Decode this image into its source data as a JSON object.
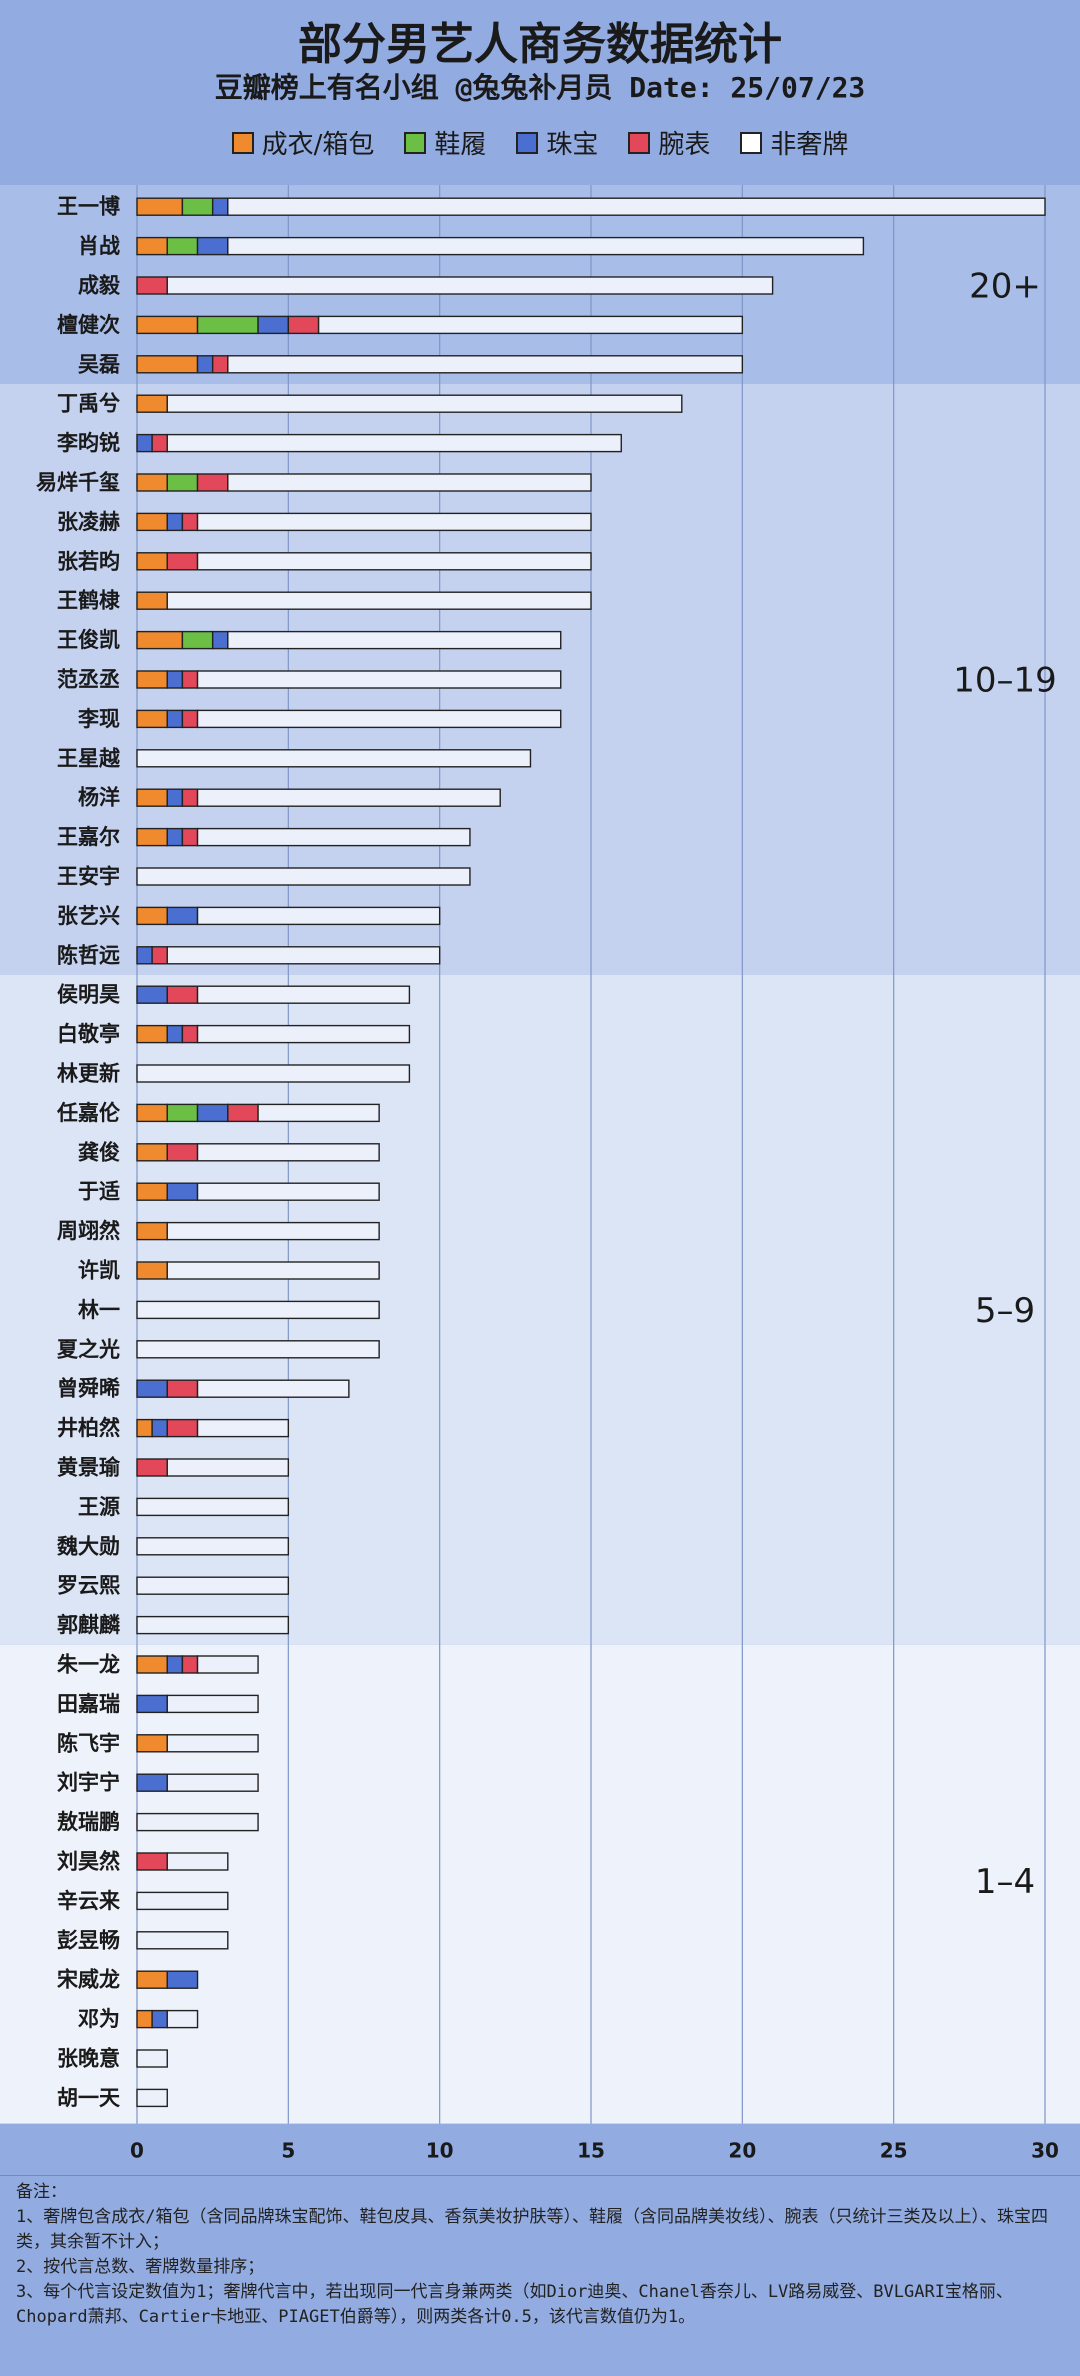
{
  "chart_data": {
    "type": "bar",
    "orientation": "horizontal",
    "stacked": true,
    "title": "部分男艺人商务数据统计",
    "subtitle": "豆瓣榜上有名小组 @兔兔补月员  Date: 25/07/23",
    "legend": [
      {
        "key": "clothing",
        "label": "成衣/箱包",
        "color": "#ef8a2e"
      },
      {
        "key": "shoes",
        "label": "鞋履",
        "color": "#6cbf45"
      },
      {
        "key": "jewelry",
        "label": "珠宝",
        "color": "#4a6fd0"
      },
      {
        "key": "watch",
        "label": "腕表",
        "color": "#e3475a"
      },
      {
        "key": "nonluxury",
        "label": "非奢牌",
        "color": "#ffffff"
      }
    ],
    "xlim": [
      0,
      30
    ],
    "xticks": [
      0,
      5,
      10,
      15,
      20,
      25,
      30
    ],
    "grid": true,
    "groups": [
      {
        "label": "20+",
        "count": 5
      },
      {
        "label": "10–19",
        "count": 15
      },
      {
        "label": "5–9",
        "count": 17
      },
      {
        "label": "1–4",
        "count": 12
      }
    ],
    "categories": [
      "王一博",
      "肖战",
      "成毅",
      "檀健次",
      "吴磊",
      "丁禹兮",
      "李昀锐",
      "易烊千玺",
      "张凌赫",
      "张若昀",
      "王鹤棣",
      "王俊凯",
      "范丞丞",
      "李现",
      "王星越",
      "杨洋",
      "王嘉尔",
      "王安宇",
      "张艺兴",
      "陈哲远",
      "侯明昊",
      "白敬亭",
      "林更新",
      "任嘉伦",
      "龚俊",
      "于适",
      "周翊然",
      "许凯",
      "林一",
      "夏之光",
      "曾舜晞",
      "井柏然",
      "黄景瑜",
      "王源",
      "魏大勋",
      "罗云熙",
      "郭麒麟",
      "朱一龙",
      "田嘉瑞",
      "陈飞宇",
      "刘宇宁",
      "敖瑞鹏",
      "刘昊然",
      "辛云来",
      "彭昱畅",
      "宋威龙",
      "邓为",
      "张晚意",
      "胡一天"
    ],
    "series": [
      {
        "name": "成衣/箱包",
        "values": [
          1.5,
          1,
          0,
          2,
          2,
          1,
          0,
          1,
          1,
          1,
          1,
          1.5,
          1,
          1,
          0,
          1,
          1,
          0,
          1,
          0,
          0,
          1,
          0,
          1,
          1,
          1,
          1,
          1,
          0,
          0,
          0,
          0.5,
          0,
          0,
          0,
          0,
          0,
          1,
          0,
          1,
          0,
          0,
          0,
          0,
          0,
          1,
          0.5,
          0,
          0
        ]
      },
      {
        "name": "鞋履",
        "values": [
          1,
          1,
          0,
          2,
          0,
          0,
          0,
          1,
          0,
          0,
          0,
          1,
          0,
          0,
          0,
          0,
          0,
          0,
          0,
          0,
          0,
          0,
          0,
          1,
          0,
          0,
          0,
          0,
          0,
          0,
          0,
          0,
          0,
          0,
          0,
          0,
          0,
          0,
          0,
          0,
          0,
          0,
          0,
          0,
          0,
          0,
          0,
          0,
          0
        ]
      },
      {
        "name": "珠宝",
        "values": [
          0.5,
          1,
          0,
          1,
          0.5,
          0,
          0.5,
          0,
          0.5,
          0,
          0,
          0.5,
          0.5,
          0.5,
          0,
          0.5,
          0.5,
          0,
          1,
          0.5,
          1,
          0.5,
          0,
          1,
          0,
          1,
          0,
          0,
          0,
          0,
          1,
          0.5,
          0,
          0,
          0,
          0,
          0,
          0.5,
          1,
          0,
          1,
          0,
          0,
          0,
          0,
          1,
          0.5,
          0,
          0
        ]
      },
      {
        "name": "腕表",
        "values": [
          0,
          0,
          1,
          1,
          0.5,
          0,
          0.5,
          1,
          0.5,
          1,
          0,
          0,
          0.5,
          0.5,
          0,
          0.5,
          0.5,
          0,
          0,
          0.5,
          1,
          0.5,
          0,
          1,
          1,
          0,
          0,
          0,
          0,
          0,
          1,
          1,
          1,
          0,
          0,
          0,
          0,
          0.5,
          0,
          0,
          0,
          0,
          1,
          0,
          0,
          0,
          0,
          0,
          0
        ]
      },
      {
        "name": "非奢牌",
        "values": [
          27,
          21,
          20,
          14,
          17,
          17,
          15,
          12,
          13,
          13,
          14,
          11,
          12,
          12,
          13,
          10,
          9,
          11,
          8,
          9,
          7,
          7,
          9,
          4,
          6,
          6,
          7,
          7,
          8,
          8,
          5,
          3,
          4,
          5,
          5,
          5,
          5,
          2,
          3,
          3,
          3,
          4,
          2,
          3,
          3,
          0,
          1,
          1,
          1
        ]
      }
    ],
    "totals": [
      30,
      24,
      21,
      20,
      20,
      18,
      16,
      15,
      15,
      15,
      15,
      14,
      14,
      14,
      13,
      12,
      11,
      11,
      10,
      10,
      9,
      9,
      9,
      8,
      8,
      8,
      8,
      8,
      8,
      8,
      7,
      5,
      5,
      5,
      5,
      5,
      5,
      4,
      4,
      4,
      4,
      4,
      3,
      3,
      3,
      2,
      2,
      1,
      1
    ]
  },
  "notes": {
    "heading": "备注：",
    "line1": "1、奢牌包含成衣/箱包（含同品牌珠宝配饰、鞋包皮具、香氛美妆护肤等）、鞋履（含同品牌美妆线）、腕表（只统计三类及以上）、珠宝四类，其余暂不计入；",
    "line2": "2、按代言总数、奢牌数量排序；",
    "line3": "3、每个代言设定数值为1；奢牌代言中，若出现同一代言身兼两类（如Dior迪奥、Chanel香奈儿、LV路易威登、BVLGARI宝格丽、Chopard萧邦、Cartier卡地亚、PIAGET伯爵等），则两类各计0.5，该代言数值仍为1。"
  }
}
